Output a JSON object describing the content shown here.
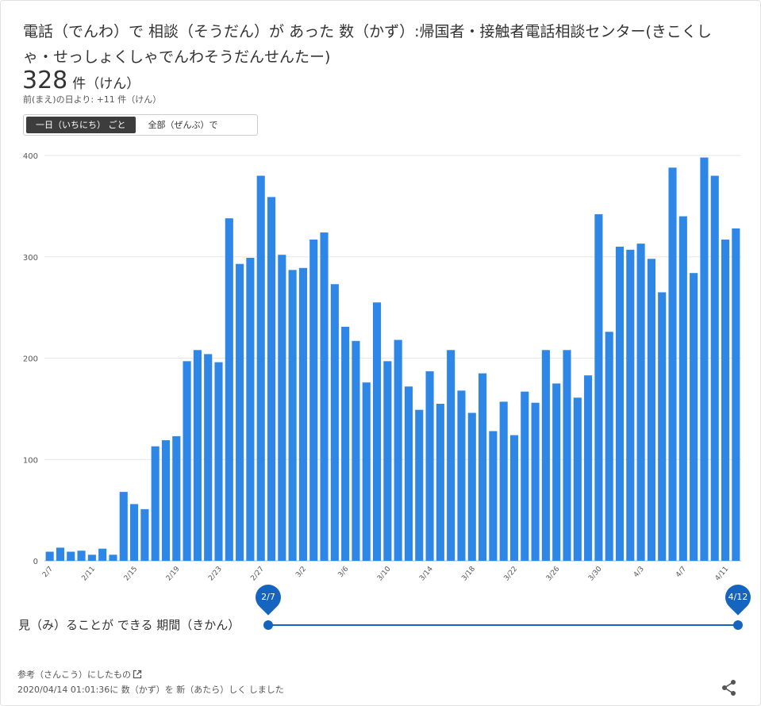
{
  "title": "電話（でんわ）で 相談（そうだん）が あった 数（かず）:帰国者・接触者電話相談センター(きこくしゃ・せっしょくしゃでんわそうだんせんたー)",
  "summary": {
    "value": "328",
    "unit": "件（けん）",
    "diff": "前(まえ)の日より: +11 件（けん）"
  },
  "toggle": {
    "daily": "一日（いちにち） ごと",
    "cumulative": "全部（ぜんぶ）で"
  },
  "chart_data": {
    "type": "bar",
    "categories": [
      "2/7",
      "2/8",
      "2/9",
      "2/10",
      "2/11",
      "2/12",
      "2/13",
      "2/14",
      "2/15",
      "2/16",
      "2/17",
      "2/18",
      "2/19",
      "2/20",
      "2/21",
      "2/22",
      "2/23",
      "2/24",
      "2/25",
      "2/26",
      "2/27",
      "2/28",
      "2/29",
      "3/1",
      "3/2",
      "3/3",
      "3/4",
      "3/5",
      "3/6",
      "3/7",
      "3/8",
      "3/9",
      "3/10",
      "3/11",
      "3/12",
      "3/13",
      "3/14",
      "3/15",
      "3/16",
      "3/17",
      "3/18",
      "3/19",
      "3/20",
      "3/21",
      "3/22",
      "3/23",
      "3/24",
      "3/25",
      "3/26",
      "3/27",
      "3/28",
      "3/29",
      "3/30",
      "3/31",
      "4/1",
      "4/2",
      "4/3",
      "4/4",
      "4/5",
      "4/6",
      "4/7",
      "4/8",
      "4/9",
      "4/10",
      "4/11",
      "4/12"
    ],
    "tick_labels": [
      "2/7",
      "2/11",
      "2/15",
      "2/19",
      "2/23",
      "2/27",
      "3/2",
      "3/6",
      "3/10",
      "3/14",
      "3/18",
      "3/22",
      "3/26",
      "3/30",
      "4/3",
      "4/7",
      "4/11"
    ],
    "values": [
      9,
      13,
      9,
      10,
      6,
      12,
      6,
      68,
      56,
      51,
      113,
      119,
      123,
      197,
      208,
      204,
      196,
      338,
      293,
      299,
      380,
      359,
      302,
      287,
      289,
      317,
      324,
      273,
      231,
      217,
      176,
      255,
      197,
      218,
      172,
      149,
      187,
      155,
      208,
      168,
      146,
      185,
      128,
      157,
      124,
      167,
      156,
      208,
      175,
      208,
      161,
      183,
      342,
      226,
      310,
      307,
      313,
      298,
      265,
      388,
      340,
      284,
      398,
      380,
      317,
      328
    ],
    "yticks": [
      0,
      100,
      200,
      300,
      400
    ],
    "ylim": [
      0,
      400
    ],
    "color": "#2e86e6",
    "grid": true
  },
  "range": {
    "label": "見（み）ることが できる 期間（きかん）",
    "start": "2/7",
    "end": "4/12"
  },
  "footer": {
    "reference": "参考（さんこう）にしたもの",
    "updated": "2020/04/14 01:01:36に 数（かず）を 新（あたら）しく しました"
  },
  "icons": {
    "external": "external-link-icon",
    "share": "share-icon"
  }
}
